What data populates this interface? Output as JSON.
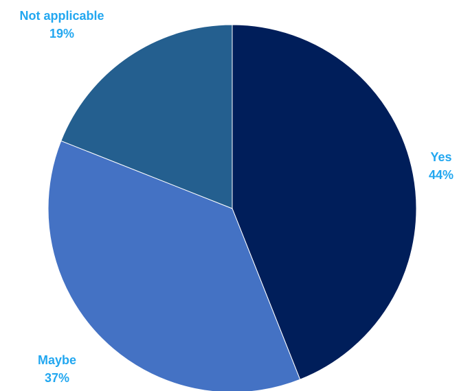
{
  "chart_data": {
    "type": "pie",
    "slices": [
      {
        "label": "Yes",
        "value": 44,
        "value_text": "44%",
        "color": "#001E5A"
      },
      {
        "label": "Maybe",
        "value": 37,
        "value_text": "37%",
        "color": "#4472C4"
      },
      {
        "label": "Not applicable",
        "value": 19,
        "value_text": "19%",
        "color": "#245F8F"
      }
    ],
    "start_angle": "12 o'clock",
    "direction": "clockwise",
    "label_color": "#22A7F0",
    "legend": "none"
  }
}
